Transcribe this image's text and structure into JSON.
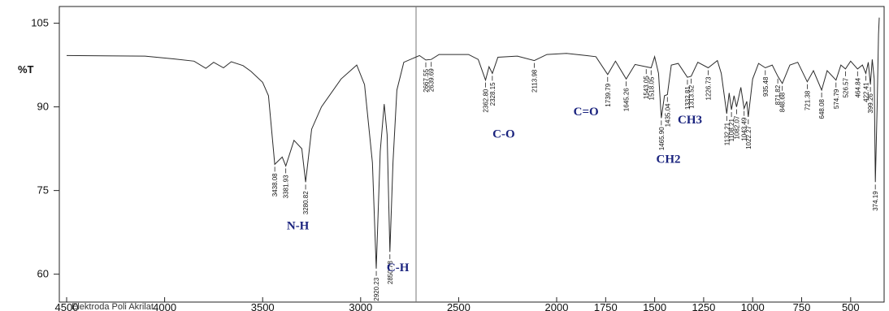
{
  "chart_data": {
    "type": "line",
    "title": "",
    "xlabel": "",
    "ylabel": "%T",
    "xlim": [
      4500,
      350
    ],
    "ylim": [
      55,
      108
    ],
    "x_ticks": [
      4500,
      4000,
      3500,
      3000,
      2500,
      2000,
      1750,
      1500,
      1250,
      1000,
      750,
      500
    ],
    "y_ticks": [
      60,
      75,
      90,
      105
    ],
    "grid": false,
    "series": [
      {
        "name": "",
        "points": [
          [
            4500,
            99.2
          ],
          [
            4100,
            99.1
          ],
          [
            3950,
            98.6
          ],
          [
            3850,
            98.2
          ],
          [
            3790,
            96.9
          ],
          [
            3750,
            98.0
          ],
          [
            3700,
            97.0
          ],
          [
            3660,
            98.1
          ],
          [
            3600,
            97.4
          ],
          [
            3560,
            96.4
          ],
          [
            3500,
            94.4
          ],
          [
            3470,
            92.0
          ],
          [
            3438.08,
            79.7
          ],
          [
            3400,
            81.0
          ],
          [
            3381.93,
            79.4
          ],
          [
            3340,
            84.0
          ],
          [
            3300,
            82.5
          ],
          [
            3280.82,
            76.5
          ],
          [
            3250,
            86.0
          ],
          [
            3200,
            90.0
          ],
          [
            3100,
            95.0
          ],
          [
            3020,
            97.5
          ],
          [
            2980,
            94.0
          ],
          [
            2940,
            80.0
          ],
          [
            2920.23,
            61.0
          ],
          [
            2900,
            82.0
          ],
          [
            2880,
            90.5
          ],
          [
            2865,
            85.0
          ],
          [
            2850.78,
            64.0
          ],
          [
            2835,
            80.0
          ],
          [
            2815,
            93.0
          ],
          [
            2780,
            98.0
          ],
          [
            2700,
            99.2
          ],
          [
            2667.55,
            98.4
          ],
          [
            2639.69,
            98.5
          ],
          [
            2600,
            99.4
          ],
          [
            2450,
            99.4
          ],
          [
            2400,
            98.5
          ],
          [
            2362.8,
            94.8
          ],
          [
            2345,
            97.2
          ],
          [
            2328.15,
            96.0
          ],
          [
            2300,
            98.9
          ],
          [
            2200,
            99.1
          ],
          [
            2113.98,
            98.3
          ],
          [
            2050,
            99.4
          ],
          [
            1950,
            99.6
          ],
          [
            1850,
            99.2
          ],
          [
            1800,
            99.0
          ],
          [
            1739.79,
            95.8
          ],
          [
            1700,
            98.2
          ],
          [
            1645.26,
            95.0
          ],
          [
            1600,
            97.6
          ],
          [
            1543.05,
            97.2
          ],
          [
            1518.05,
            97.0
          ],
          [
            1500,
            99.0
          ],
          [
            1480,
            96.0
          ],
          [
            1465.9,
            88.0
          ],
          [
            1450,
            92.0
          ],
          [
            1435.04,
            92.2
          ],
          [
            1415,
            97.5
          ],
          [
            1380,
            97.8
          ],
          [
            1332.81,
            95.3
          ],
          [
            1313.52,
            95.5
          ],
          [
            1280,
            98.0
          ],
          [
            1226.73,
            97.0
          ],
          [
            1180,
            98.3
          ],
          [
            1160,
            96.0
          ],
          [
            1132.21,
            88.8
          ],
          [
            1120,
            92.5
          ],
          [
            1108.21,
            89.5
          ],
          [
            1095,
            92.0
          ],
          [
            1082.07,
            90.0
          ],
          [
            1060,
            93.5
          ],
          [
            1043.49,
            89.7
          ],
          [
            1030,
            91.0
          ],
          [
            1022.27,
            88.2
          ],
          [
            1000,
            95.0
          ],
          [
            970,
            97.8
          ],
          [
            935.48,
            97.0
          ],
          [
            900,
            97.5
          ],
          [
            871.82,
            95.5
          ],
          [
            848.68,
            94.2
          ],
          [
            810,
            97.5
          ],
          [
            770,
            98.0
          ],
          [
            721.38,
            94.5
          ],
          [
            690,
            96.5
          ],
          [
            648.08,
            93.0
          ],
          [
            620,
            96.5
          ],
          [
            574.79,
            94.8
          ],
          [
            550,
            97.5
          ],
          [
            526.57,
            96.8
          ],
          [
            500,
            98.2
          ],
          [
            464.84,
            96.8
          ],
          [
            440,
            97.5
          ],
          [
            422.41,
            96.0
          ],
          [
            410,
            98.0
          ],
          [
            399.26,
            94.0
          ],
          [
            390,
            98.5
          ],
          [
            380,
            95.0
          ],
          [
            374.19,
            76.5
          ],
          [
            365,
            90.0
          ],
          [
            358,
            103.0
          ],
          [
            354,
            106.0
          ]
        ]
      }
    ],
    "peak_labels": [
      {
        "x": 3438.08,
        "y": 79.7,
        "text": "3438.08"
      },
      {
        "x": 3381.93,
        "y": 79.4,
        "text": "3381.93"
      },
      {
        "x": 3280.82,
        "y": 76.5,
        "text": "3280.82"
      },
      {
        "x": 2920.23,
        "y": 61.0,
        "text": "2920.23"
      },
      {
        "x": 2850.78,
        "y": 64.0,
        "text": "2850.78"
      },
      {
        "x": 2667.55,
        "y": 98.4,
        "text": "2667.55"
      },
      {
        "x": 2639.69,
        "y": 98.5,
        "text": "2639.69"
      },
      {
        "x": 2362.8,
        "y": 94.8,
        "text": "2362.80"
      },
      {
        "x": 2328.15,
        "y": 96.0,
        "text": "2328.15"
      },
      {
        "x": 2113.98,
        "y": 98.3,
        "text": "2113.98"
      },
      {
        "x": 1739.79,
        "y": 95.8,
        "text": "1739.79"
      },
      {
        "x": 1645.26,
        "y": 95.0,
        "text": "1645.26"
      },
      {
        "x": 1543.05,
        "y": 97.2,
        "text": "1543.05"
      },
      {
        "x": 1518.05,
        "y": 97.0,
        "text": "1518.05"
      },
      {
        "x": 1465.9,
        "y": 88.0,
        "text": "1465.90"
      },
      {
        "x": 1435.04,
        "y": 92.2,
        "text": "1435.04"
      },
      {
        "x": 1332.81,
        "y": 95.3,
        "text": "1332.81"
      },
      {
        "x": 1313.52,
        "y": 95.5,
        "text": "1313.52"
      },
      {
        "x": 1226.73,
        "y": 97.0,
        "text": "1226.73"
      },
      {
        "x": 1132.21,
        "y": 88.8,
        "text": "1132.21"
      },
      {
        "x": 1108.21,
        "y": 89.5,
        "text": "1108.21"
      },
      {
        "x": 1082.07,
        "y": 90.0,
        "text": "1082.07"
      },
      {
        "x": 1043.49,
        "y": 89.7,
        "text": "1043.49"
      },
      {
        "x": 1022.27,
        "y": 88.2,
        "text": "1022.27"
      },
      {
        "x": 935.48,
        "y": 97.0,
        "text": "935.48"
      },
      {
        "x": 871.82,
        "y": 95.5,
        "text": "871.82"
      },
      {
        "x": 848.68,
        "y": 94.2,
        "text": "848.68"
      },
      {
        "x": 721.38,
        "y": 94.5,
        "text": "721.38"
      },
      {
        "x": 648.08,
        "y": 93.0,
        "text": "648.08"
      },
      {
        "x": 574.79,
        "y": 94.8,
        "text": "574.79"
      },
      {
        "x": 526.57,
        "y": 96.8,
        "text": "526.57"
      },
      {
        "x": 464.84,
        "y": 96.8,
        "text": "464.84"
      },
      {
        "x": 422.41,
        "y": 96.0,
        "text": "422.41"
      },
      {
        "x": 399.26,
        "y": 94.0,
        "text": "399.26"
      },
      {
        "x": 374.19,
        "y": 76.5,
        "text": "374.19"
      }
    ],
    "annotations": [
      {
        "text": "N-H",
        "x": 3320,
        "y": 68
      },
      {
        "text": "C-H",
        "x": 2810,
        "y": 60.5
      },
      {
        "text": "C-O",
        "x": 2270,
        "y": 84.5
      },
      {
        "text": "C=O",
        "x": 1850,
        "y": 88.5
      },
      {
        "text": "CH3",
        "x": 1320,
        "y": 87
      },
      {
        "text": "CH2",
        "x": 1430,
        "y": 80
      }
    ],
    "footer_text": "Elektroda Poli Akrilat",
    "colors": {
      "line": "#2b2b2b",
      "axis": "#222222",
      "group_label": "#1a237e"
    }
  }
}
